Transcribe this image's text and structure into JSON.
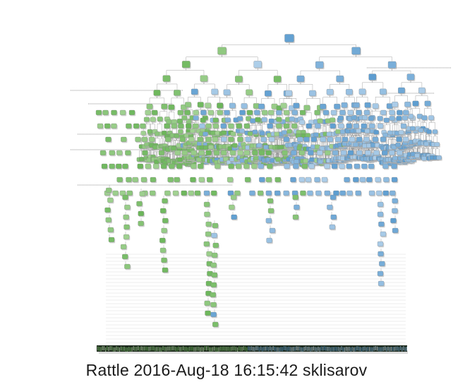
{
  "diagram": {
    "type": "decision-tree",
    "caption": "Rattle 2016-Aug-18 16:15:42 sklisarov",
    "colors": {
      "background": "#ffffff",
      "node_green_light": "#cfe8c2",
      "node_green_dark": "#5fb04d",
      "node_blue_light": "#d6e6f5",
      "node_blue_dark": "#4f95cc",
      "node_shadow": "#b5b5b5",
      "edge": "#8f8f8f",
      "guide_line": "#dcdcdc",
      "leaf_band": "#1d2a1d"
    }
  }
}
